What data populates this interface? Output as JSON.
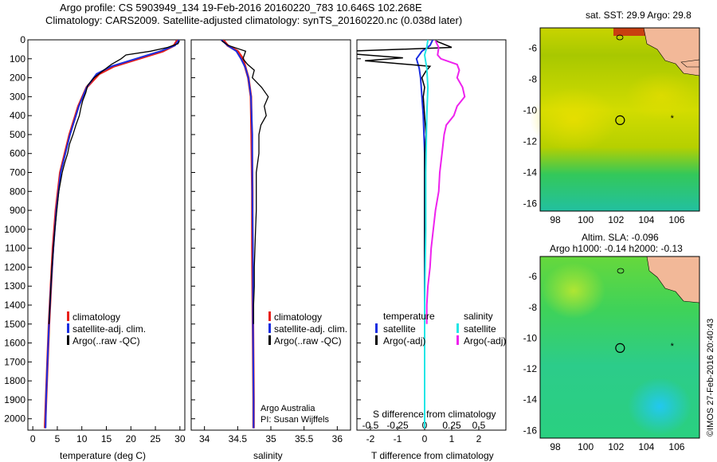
{
  "header": {
    "line1": "Argo profile: CS 5903949_134 19-Feb-2016 20160220_783 10.646S 102.268E",
    "line2": "Climatology: CARS2009. Satellite-adjusted climatology: synTS_20160220.nc (0.038d later)"
  },
  "colors": {
    "climatology": "#e8201a",
    "satellite": "#1a2ee0",
    "argo": "#000000",
    "satellite_salinity": "#22e6e6",
    "argo_adj_salinity": "#ee22ee"
  },
  "chart_data": [
    {
      "type": "line",
      "id": "temperature",
      "xlabel": "temperature (deg C)",
      "ylabel": "",
      "xlim": [
        -1,
        31
      ],
      "ylim": [
        2060,
        0
      ],
      "xticks": [
        "0",
        "5",
        "10",
        "15",
        "20",
        "25",
        "30"
      ],
      "xtick_values": [
        0,
        5,
        10,
        15,
        20,
        25,
        30
      ],
      "yticks": [
        "0",
        "100",
        "200",
        "300",
        "400",
        "500",
        "600",
        "700",
        "800",
        "900",
        "1000",
        "1100",
        "1200",
        "1300",
        "1400",
        "1500",
        "1600",
        "1700",
        "1800",
        "1900",
        "2000"
      ],
      "ytick_values": [
        0,
        100,
        200,
        300,
        400,
        500,
        600,
        700,
        800,
        900,
        1000,
        1100,
        1200,
        1300,
        1400,
        1500,
        1600,
        1700,
        1800,
        1900,
        2000
      ],
      "legend": [
        "climatology",
        "satellite-adj. clim.",
        "Argo(..raw -QC)"
      ],
      "series": [
        {
          "name": "climatology",
          "depth": [
            0,
            30,
            60,
            100,
            140,
            180,
            250,
            350,
            500,
            700,
            900,
            1100,
            1300,
            1500,
            1700,
            1900,
            2050
          ],
          "values": [
            29.5,
            28.8,
            26.5,
            21.5,
            16.5,
            13.5,
            11.0,
            9.3,
            7.5,
            5.6,
            4.7,
            4.1,
            3.7,
            3.3,
            3.0,
            2.7,
            2.5
          ]
        },
        {
          "name": "satellite-adj. clim.",
          "depth": [
            0,
            30,
            60,
            100,
            140,
            180,
            250,
            350,
            500,
            700,
            900,
            1100,
            1300,
            1500,
            1700,
            1900,
            2050
          ],
          "values": [
            29.8,
            29.0,
            26.0,
            21.0,
            16.0,
            13.0,
            11.0,
            9.4,
            7.6,
            5.7,
            4.8,
            4.2,
            3.7,
            3.3,
            3.0,
            2.7,
            2.6
          ]
        },
        {
          "name": "Argo(..raw -QC)",
          "depth": [
            5,
            20,
            40,
            60,
            80,
            100,
            130,
            170,
            200,
            240,
            280,
            320,
            360,
            400,
            450,
            500,
            550,
            600,
            650,
            700,
            800,
            900,
            1000,
            1100,
            1200,
            1300,
            1400,
            1500
          ],
          "values": [
            29.9,
            29.6,
            27.5,
            24.0,
            19.0,
            18.0,
            16.0,
            14.0,
            12.5,
            11.2,
            10.8,
            10.2,
            9.8,
            9.5,
            8.8,
            8.2,
            7.5,
            7.1,
            6.5,
            6.0,
            5.3,
            4.9,
            4.5,
            4.2,
            3.9,
            3.7,
            3.5,
            3.3
          ]
        }
      ]
    },
    {
      "type": "line",
      "id": "salinity",
      "xlabel": "salinity",
      "xlim": [
        33.8,
        36.2
      ],
      "ylim": [
        2060,
        0
      ],
      "xticks": [
        "34",
        "34.5",
        "35",
        "35.5",
        "36"
      ],
      "xtick_values": [
        34,
        34.5,
        35,
        35.5,
        36
      ],
      "legend": [
        "climatology",
        "satellite-adj. clim.",
        "Argo(..raw -QC)"
      ],
      "annotations": [
        "Argo Australia",
        "PI: Susan Wijffels"
      ],
      "series": [
        {
          "name": "climatology",
          "depth": [
            0,
            30,
            60,
            100,
            150,
            200,
            300,
            500,
            800,
            1100,
            1500,
            1900,
            2050
          ],
          "values": [
            34.28,
            34.35,
            34.5,
            34.58,
            34.62,
            34.66,
            34.7,
            34.71,
            34.72,
            34.72,
            34.73,
            34.74,
            34.74
          ]
        },
        {
          "name": "satellite-adj. clim.",
          "depth": [
            0,
            30,
            60,
            100,
            150,
            200,
            300,
            500,
            800,
            1100,
            1500,
            1900,
            2050
          ],
          "values": [
            34.25,
            34.35,
            34.48,
            34.55,
            34.62,
            34.66,
            34.7,
            34.72,
            34.72,
            34.73,
            34.73,
            34.74,
            34.74
          ]
        },
        {
          "name": "Argo(..raw -QC)",
          "depth": [
            5,
            30,
            60,
            100,
            130,
            160,
            200,
            250,
            300,
            350,
            400,
            450,
            500,
            600,
            700,
            800,
            900,
            1000,
            1100,
            1200,
            1300,
            1400,
            1500
          ],
          "values": [
            34.26,
            34.36,
            34.62,
            34.58,
            34.65,
            34.75,
            34.72,
            34.86,
            34.96,
            34.9,
            34.93,
            34.85,
            34.82,
            34.82,
            34.78,
            34.78,
            34.78,
            34.77,
            34.76,
            34.75,
            34.75,
            34.74,
            34.74
          ]
        }
      ]
    },
    {
      "type": "line",
      "id": "difference",
      "xlabel": "T difference from climatology",
      "xlabel_top": "S difference from climatology",
      "xlim": [
        -2.5,
        3
      ],
      "ylim": [
        2060,
        0
      ],
      "xticks": [
        "-2",
        "-1",
        "0",
        "1",
        "2"
      ],
      "xtick_values": [
        -2,
        -1,
        0,
        1,
        2
      ],
      "xticks_top": [
        "-0.5",
        "-0.25",
        "0",
        "0.25",
        "0.5"
      ],
      "legend": {
        "temperature_title": "temperature",
        "salinity_title": "salinity",
        "temperature": [
          "satellite",
          "Argo(-adj)"
        ],
        "salinity": [
          "satellite",
          "Argo(-adj)"
        ]
      },
      "series": [
        {
          "name": "T satellite",
          "depth": [
            0,
            30,
            60,
            100,
            150,
            200,
            300,
            400,
            600,
            800,
            1000,
            1300,
            1600,
            1900,
            2050
          ],
          "values": [
            0.3,
            0.2,
            -0.1,
            -0.3,
            -0.2,
            -0.15,
            -0.1,
            -0.05,
            0.0,
            0.0,
            0.0,
            0.0,
            0.0,
            0.0,
            0.0
          ]
        },
        {
          "name": "T Argo(-adj)",
          "depth": [
            5,
            40,
            60,
            75,
            95,
            110,
            140,
            165,
            200,
            250,
            300,
            400,
            500,
            600,
            800,
            1000,
            1200,
            1400,
            1500
          ],
          "values": [
            0.4,
            1.0,
            -2.8,
            -2.6,
            -0.8,
            -2.2,
            0.2,
            0.05,
            -0.1,
            0.0,
            -0.05,
            0.0,
            0.05,
            0.0,
            0.0,
            0.0,
            0.0,
            0.0,
            0.0
          ]
        },
        {
          "name": "S satellite",
          "depth": [
            0,
            40,
            80,
            150,
            250,
            400,
            700,
            1000,
            1400,
            1800,
            2050
          ],
          "values": [
            0.03,
            0.02,
            0.0,
            0.02,
            0.03,
            0.02,
            0.01,
            0.01,
            0.0,
            0.0,
            0.0
          ]
        },
        {
          "name": "S Argo(-adj)",
          "depth": [
            5,
            40,
            80,
            100,
            130,
            160,
            200,
            250,
            300,
            350,
            400,
            450,
            500,
            600,
            700,
            800,
            900,
            1000,
            1100,
            1200,
            1300,
            1400,
            1500
          ],
          "values": [
            0.1,
            0.13,
            0.12,
            0.15,
            0.3,
            0.32,
            0.3,
            0.35,
            0.37,
            0.3,
            0.27,
            0.2,
            0.18,
            0.16,
            0.14,
            0.13,
            0.1,
            0.08,
            0.06,
            0.05,
            0.03,
            0.02,
            0.02
          ]
        }
      ]
    },
    {
      "type": "heatmap",
      "id": "sst_map",
      "title": "sat. SST: 29.9 Argo: 29.8",
      "xlim": [
        97,
        107.5
      ],
      "ylim": [
        -16.5,
        -4.7
      ],
      "xticks": [
        "98",
        "100",
        "102",
        "104",
        "106"
      ],
      "xtick_values": [
        98,
        100,
        102,
        104,
        106
      ],
      "yticks": [
        "-6",
        "-8",
        "-10",
        "-12",
        "-14",
        "-16"
      ],
      "ytick_values": [
        -6,
        -8,
        -10,
        -12,
        -14,
        -16
      ],
      "profile_location": [
        102.268,
        -10.646
      ],
      "marker_location": [
        105.7,
        -10.45
      ]
    },
    {
      "type": "heatmap",
      "id": "sla_map",
      "title": "Altim. SLA: -0.096",
      "subtitle": "Argo h1000: -0.14 h2000: -0.13",
      "xlim": [
        97,
        107.5
      ],
      "ylim": [
        -16.5,
        -4.7
      ],
      "xticks": [
        "98",
        "100",
        "102",
        "104",
        "106"
      ],
      "xtick_values": [
        98,
        100,
        102,
        104,
        106
      ],
      "yticks": [
        "-6",
        "-8",
        "-10",
        "-12",
        "-14",
        "-16"
      ],
      "ytick_values": [
        -6,
        -8,
        -10,
        -12,
        -14,
        -16
      ],
      "profile_location": [
        102.268,
        -10.646
      ],
      "marker_location": [
        105.7,
        -10.45
      ]
    }
  ],
  "credit": "©IMOS 27-Feb-2016 20:40:43"
}
